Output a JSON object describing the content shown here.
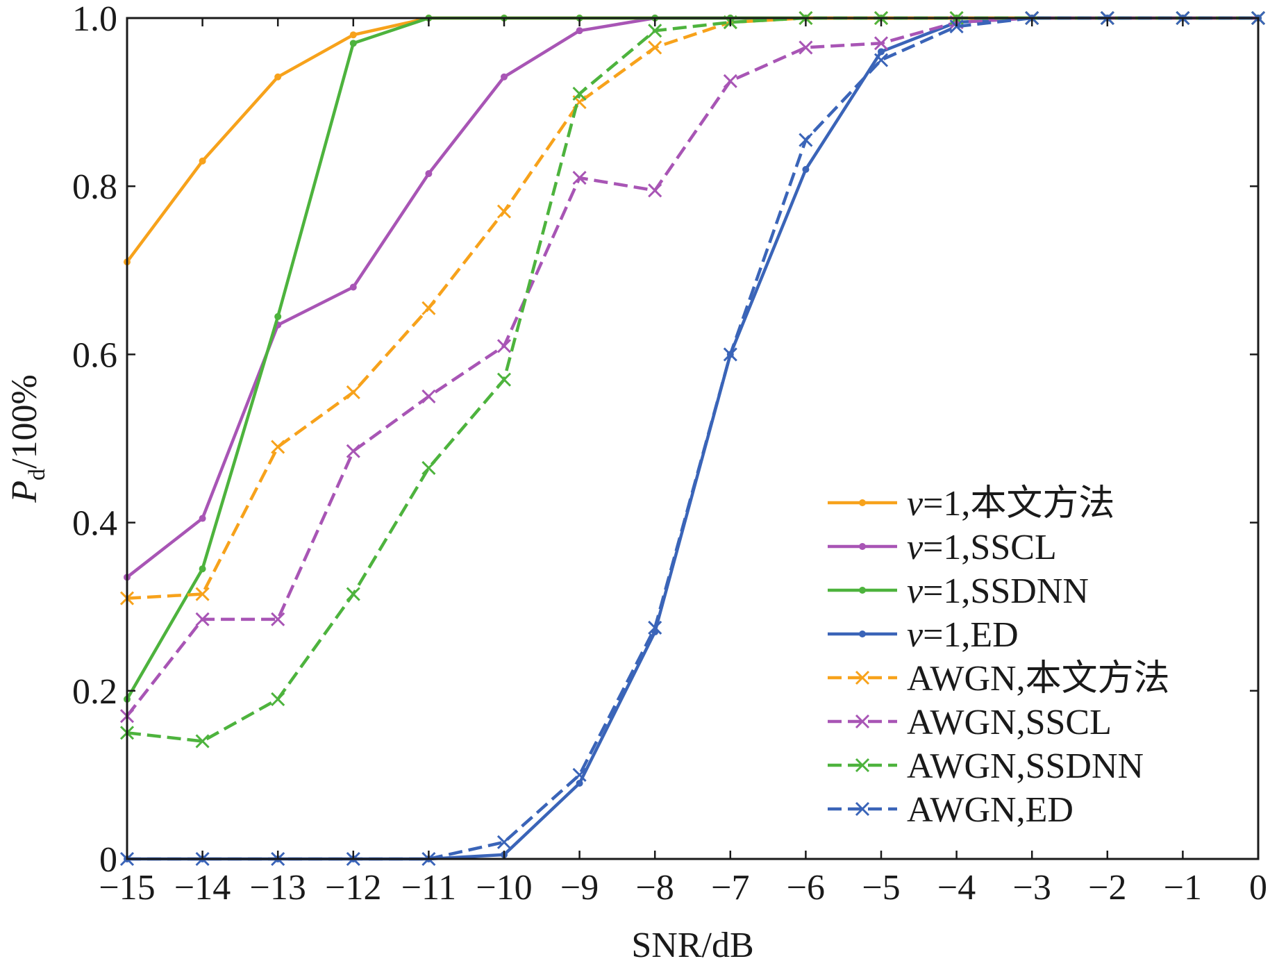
{
  "chart_data": {
    "type": "line",
    "title": "",
    "xlabel": "SNR/dB",
    "ylabel": {
      "main": "P",
      "sub": "d",
      "suffix": "/100%"
    },
    "xlim": [
      -15,
      0
    ],
    "ylim": [
      0,
      1
    ],
    "xticks": [
      -15,
      -14,
      -13,
      -12,
      -11,
      -10,
      -9,
      -8,
      -7,
      -6,
      -5,
      -4,
      -3,
      -2,
      -1,
      0
    ],
    "xtick_labels": [
      "−15",
      "−14",
      "−13",
      "−12",
      "−11",
      "−10",
      "−9",
      "−8",
      "−7",
      "−6",
      "−5",
      "−4",
      "−3",
      "−2",
      "−1",
      "0"
    ],
    "yticks": [
      0,
      0.2,
      0.4,
      0.6,
      0.8,
      1.0
    ],
    "ytick_labels": [
      "0",
      "0.2",
      "0.4",
      "0.6",
      "0.8",
      "1.0"
    ],
    "grid": false,
    "legend_position": "bottom-right",
    "x": [
      -15,
      -14,
      -13,
      -12,
      -11,
      -10,
      -9,
      -8,
      -7,
      -6,
      -5,
      -4,
      -3,
      -2,
      -1,
      0
    ],
    "series": [
      {
        "name": "v=1,本文方法",
        "legend_prefix": "v",
        "legend_rest": "=1,本文方法",
        "color": "#f7a21b",
        "dash": "solid",
        "marker": "dot",
        "values": [
          0.71,
          0.83,
          0.93,
          0.98,
          1.0,
          1.0,
          1.0,
          1.0,
          1.0,
          1.0,
          1.0,
          1.0,
          1.0,
          1.0,
          1.0,
          1.0
        ]
      },
      {
        "name": "v=1,SSCL",
        "legend_prefix": "v",
        "legend_rest": "=1,SSCL",
        "color": "#a855b5",
        "dash": "solid",
        "marker": "dot",
        "values": [
          0.335,
          0.405,
          0.635,
          0.68,
          0.815,
          0.93,
          0.985,
          1.0,
          1.0,
          1.0,
          1.0,
          1.0,
          1.0,
          1.0,
          1.0,
          1.0
        ]
      },
      {
        "name": "v=1,SSDNN",
        "legend_prefix": "v",
        "legend_rest": "=1,SSDNN",
        "color": "#4db33d",
        "dash": "solid",
        "marker": "dot",
        "values": [
          0.19,
          0.345,
          0.645,
          0.97,
          1.0,
          1.0,
          1.0,
          1.0,
          1.0,
          1.0,
          1.0,
          1.0,
          1.0,
          1.0,
          1.0,
          1.0
        ]
      },
      {
        "name": "v=1,ED",
        "legend_prefix": "v",
        "legend_rest": "=1,ED",
        "color": "#3a64b8",
        "dash": "solid",
        "marker": "dot",
        "values": [
          0,
          0,
          0,
          0,
          0,
          0.005,
          0.09,
          0.27,
          0.6,
          0.82,
          0.96,
          0.995,
          1.0,
          1.0,
          1.0,
          1.0
        ]
      },
      {
        "name": "AWGN,本文方法",
        "legend_prefix": "",
        "legend_rest": "AWGN,本文方法",
        "color": "#f7a21b",
        "dash": "dashed",
        "marker": "x",
        "values": [
          0.31,
          0.315,
          0.49,
          0.555,
          0.655,
          0.77,
          0.9,
          0.965,
          0.995,
          1.0,
          1.0,
          1.0,
          1.0,
          1.0,
          1.0,
          1.0
        ]
      },
      {
        "name": "AWGN,SSCL",
        "legend_prefix": "",
        "legend_rest": "AWGN,SSCL",
        "color": "#a855b5",
        "dash": "dashed",
        "marker": "x",
        "values": [
          0.17,
          0.285,
          0.285,
          0.485,
          0.55,
          0.61,
          0.81,
          0.795,
          0.925,
          0.965,
          0.97,
          0.995,
          1.0,
          1.0,
          1.0,
          1.0
        ]
      },
      {
        "name": "AWGN,SSDNN",
        "legend_prefix": "",
        "legend_rest": "AWGN,SSDNN",
        "color": "#4db33d",
        "dash": "dashed",
        "marker": "x",
        "values": [
          0.15,
          0.14,
          0.19,
          0.315,
          0.465,
          0.57,
          0.91,
          0.985,
          0.995,
          1.0,
          1.0,
          1.0,
          1.0,
          1.0,
          1.0,
          1.0
        ]
      },
      {
        "name": "AWGN,ED",
        "legend_prefix": "",
        "legend_rest": "AWGN,ED",
        "color": "#3a64b8",
        "dash": "dashed",
        "marker": "x",
        "values": [
          0,
          0,
          0,
          0,
          0,
          0.02,
          0.1,
          0.275,
          0.6,
          0.855,
          0.95,
          0.99,
          1.0,
          1.0,
          1.0,
          1.0
        ]
      }
    ]
  }
}
